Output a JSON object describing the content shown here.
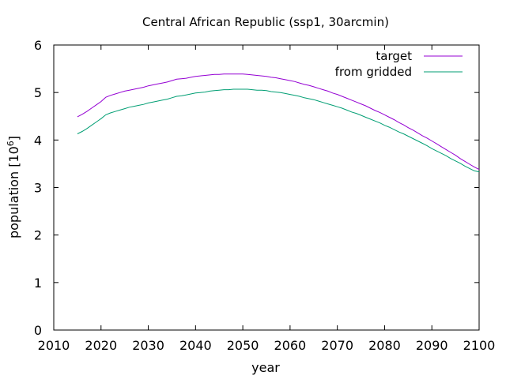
{
  "chart_data": {
    "type": "line",
    "title": "Central African Republic (ssp1, 30arcmin)",
    "xlabel": "year",
    "ylabel": "population [10",
    "ylabel_sup": "6",
    "ylabel_suffix": "]",
    "xlim": [
      2010,
      2100
    ],
    "ylim": [
      0,
      6
    ],
    "xticks": [
      2010,
      2020,
      2030,
      2040,
      2050,
      2060,
      2070,
      2080,
      2090,
      2100
    ],
    "yticks": [
      0,
      1,
      2,
      3,
      4,
      5,
      6
    ],
    "grid": false,
    "legend_position": "top-right",
    "x": [
      2015,
      2016,
      2017,
      2018,
      2019,
      2020,
      2021,
      2022,
      2023,
      2024,
      2025,
      2026,
      2027,
      2028,
      2029,
      2030,
      2031,
      2032,
      2033,
      2034,
      2035,
      2036,
      2037,
      2038,
      2039,
      2040,
      2041,
      2042,
      2043,
      2044,
      2045,
      2046,
      2047,
      2048,
      2049,
      2050,
      2051,
      2052,
      2053,
      2054,
      2055,
      2056,
      2057,
      2058,
      2059,
      2060,
      2061,
      2062,
      2063,
      2064,
      2065,
      2066,
      2067,
      2068,
      2069,
      2070,
      2071,
      2072,
      2073,
      2074,
      2075,
      2076,
      2077,
      2078,
      2079,
      2080,
      2081,
      2082,
      2083,
      2084,
      2085,
      2086,
      2087,
      2088,
      2089,
      2090,
      2091,
      2092,
      2093,
      2094,
      2095,
      2096,
      2097,
      2098,
      2099,
      2100
    ],
    "series": [
      {
        "name": "target",
        "color": "#9400d3",
        "values": [
          4.49,
          4.54,
          4.6,
          4.67,
          4.74,
          4.81,
          4.9,
          4.94,
          4.97,
          5.0,
          5.03,
          5.05,
          5.07,
          5.09,
          5.11,
          5.14,
          5.16,
          5.18,
          5.2,
          5.22,
          5.25,
          5.28,
          5.29,
          5.3,
          5.32,
          5.34,
          5.35,
          5.36,
          5.37,
          5.38,
          5.38,
          5.39,
          5.39,
          5.39,
          5.39,
          5.39,
          5.38,
          5.37,
          5.36,
          5.35,
          5.34,
          5.32,
          5.31,
          5.29,
          5.27,
          5.25,
          5.23,
          5.2,
          5.17,
          5.15,
          5.12,
          5.09,
          5.06,
          5.03,
          4.99,
          4.96,
          4.92,
          4.88,
          4.84,
          4.8,
          4.76,
          4.72,
          4.67,
          4.62,
          4.58,
          4.53,
          4.48,
          4.43,
          4.37,
          4.32,
          4.26,
          4.21,
          4.15,
          4.09,
          4.04,
          3.98,
          3.92,
          3.86,
          3.8,
          3.74,
          3.68,
          3.61,
          3.55,
          3.49,
          3.43,
          3.38
        ]
      },
      {
        "name": "from gridded",
        "color": "#009e73",
        "values": [
          4.13,
          4.18,
          4.24,
          4.31,
          4.38,
          4.45,
          4.53,
          4.57,
          4.6,
          4.63,
          4.66,
          4.69,
          4.71,
          4.73,
          4.75,
          4.78,
          4.8,
          4.82,
          4.84,
          4.86,
          4.89,
          4.92,
          4.93,
          4.95,
          4.97,
          4.99,
          5.0,
          5.01,
          5.03,
          5.04,
          5.05,
          5.06,
          5.06,
          5.07,
          5.07,
          5.07,
          5.07,
          5.06,
          5.05,
          5.05,
          5.04,
          5.02,
          5.01,
          5.0,
          4.98,
          4.96,
          4.94,
          4.92,
          4.89,
          4.87,
          4.85,
          4.82,
          4.79,
          4.76,
          4.73,
          4.7,
          4.67,
          4.63,
          4.59,
          4.56,
          4.52,
          4.48,
          4.44,
          4.4,
          4.36,
          4.31,
          4.27,
          4.22,
          4.17,
          4.13,
          4.08,
          4.03,
          3.98,
          3.93,
          3.88,
          3.82,
          3.77,
          3.72,
          3.67,
          3.61,
          3.56,
          3.51,
          3.45,
          3.4,
          3.35,
          3.33
        ]
      }
    ]
  }
}
